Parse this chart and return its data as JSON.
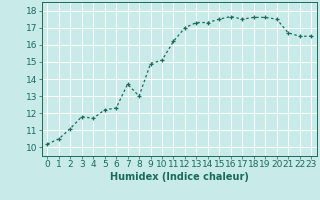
{
  "x": [
    0,
    1,
    2,
    3,
    4,
    5,
    6,
    7,
    8,
    9,
    10,
    11,
    12,
    13,
    14,
    15,
    16,
    17,
    18,
    19,
    20,
    21,
    22,
    23
  ],
  "y": [
    10.2,
    10.5,
    11.1,
    11.8,
    11.7,
    12.2,
    12.3,
    13.7,
    13.0,
    14.9,
    15.1,
    16.2,
    17.0,
    17.3,
    17.3,
    17.5,
    17.65,
    17.5,
    17.6,
    17.6,
    17.5,
    16.7,
    16.5,
    16.5
  ],
  "xlabel": "Humidex (Indice chaleur)",
  "xlim": [
    -0.5,
    23.5
  ],
  "ylim": [
    9.5,
    18.5
  ],
  "yticks": [
    10,
    11,
    12,
    13,
    14,
    15,
    16,
    17,
    18
  ],
  "xticks": [
    0,
    1,
    2,
    3,
    4,
    5,
    6,
    7,
    8,
    9,
    10,
    11,
    12,
    13,
    14,
    15,
    16,
    17,
    18,
    19,
    20,
    21,
    22,
    23
  ],
  "line_color": "#1a6b5a",
  "marker": "+",
  "bg_color": "#c8eae8",
  "grid_color": "#ffffff",
  "xlabel_fontsize": 7,
  "tick_fontsize": 6.5
}
